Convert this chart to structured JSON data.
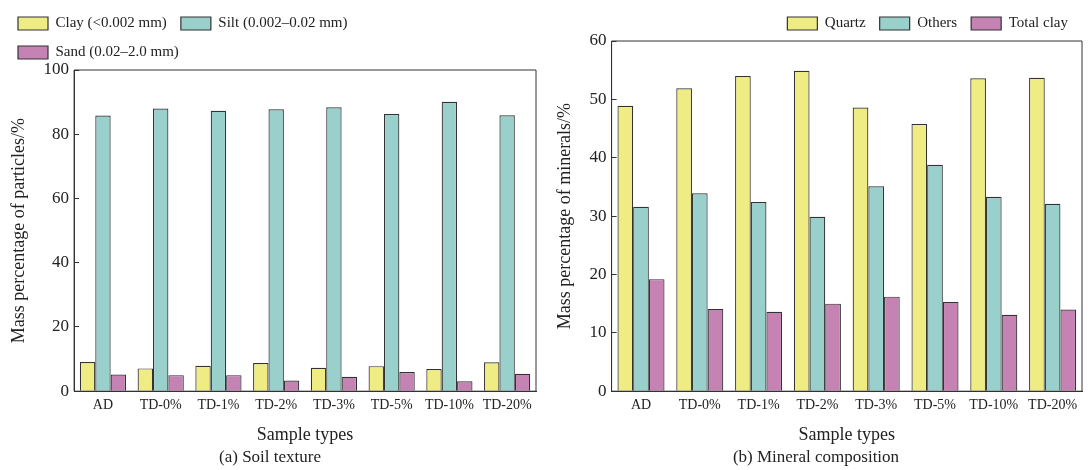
{
  "chart_data": [
    {
      "type": "bar",
      "title": "(a) Soil texture",
      "xlabel": "Sample types",
      "ylabel": "Mass percentage of particles/%",
      "categories": [
        "AD",
        "TD-0%",
        "TD-1%",
        "TD-2%",
        "TD-3%",
        "TD-5%",
        "TD-10%",
        "TD-20%"
      ],
      "series": [
        {
          "name": "Clay (<0.002 mm)",
          "color": "#f0ec84",
          "values": [
            9.1,
            7.1,
            7.9,
            8.8,
            7.3,
            7.8,
            6.9,
            9.0
          ]
        },
        {
          "name": "Silt (0.002–0.02 mm)",
          "color": "#99d0cc",
          "values": [
            85.8,
            88.0,
            87.3,
            87.8,
            88.4,
            86.3,
            90.1,
            85.9
          ]
        },
        {
          "name": "Sand (0.02–2.0 mm)",
          "color": "#c583b4",
          "values": [
            5.2,
            5.0,
            5.0,
            3.3,
            4.5,
            6.0,
            3.1,
            5.4
          ]
        }
      ],
      "ylim": [
        0,
        100
      ],
      "yticks": [
        0,
        20,
        40,
        60,
        80,
        100
      ],
      "grid": false,
      "legend": "top left"
    },
    {
      "type": "bar",
      "title": "(b) Mineral composition",
      "xlabel": "Sample types",
      "ylabel": "Mass percentage of minerals/%",
      "categories": [
        "AD",
        "TD-0%",
        "TD-1%",
        "TD-2%",
        "TD-3%",
        "TD-5%",
        "TD-10%",
        "TD-20%"
      ],
      "series": [
        {
          "name": "Quartz",
          "color": "#f0ec84",
          "values": [
            48.9,
            51.9,
            54.0,
            54.9,
            48.6,
            45.8,
            53.6,
            53.7
          ]
        },
        {
          "name": "Others",
          "color": "#99d0cc",
          "values": [
            31.6,
            33.9,
            32.4,
            29.9,
            35.1,
            38.8,
            33.3,
            32.1
          ]
        },
        {
          "name": "Total clay",
          "color": "#c583b4",
          "values": [
            19.2,
            14.1,
            13.6,
            15.0,
            16.2,
            15.3,
            13.1,
            14.0
          ]
        }
      ],
      "ylim": [
        0,
        60
      ],
      "yticks": [
        0,
        10,
        20,
        30,
        40,
        50,
        60
      ],
      "grid": false,
      "legend": "top right"
    }
  ]
}
